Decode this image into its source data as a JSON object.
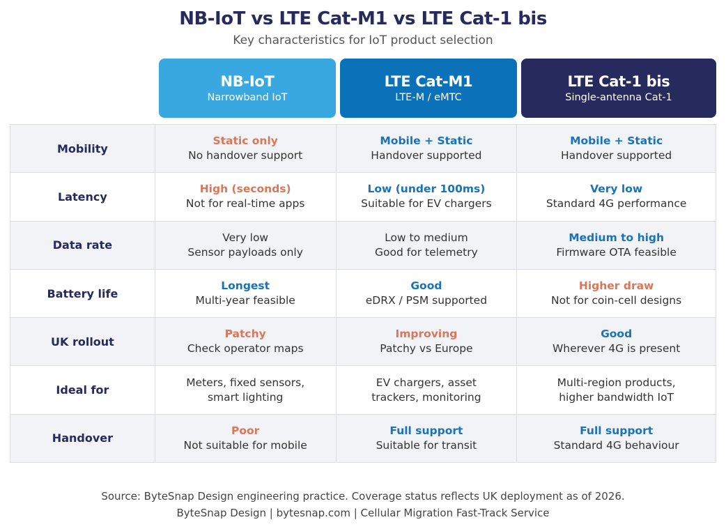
{
  "title": "NB-IoT vs LTE Cat-M1 vs LTE Cat-1 bis",
  "subtitle": "Key characteristics for IoT product selection",
  "columns": [
    {
      "name": "NB-IoT",
      "sub": "Narrowband IoT",
      "color": "#3aa8e0"
    },
    {
      "name": "LTE Cat-M1",
      "sub": "LTE-M / eMTC",
      "color": "#0b72b9"
    },
    {
      "name": "LTE Cat-1 bis",
      "sub": "Single-antenna Cat-1",
      "color": "#262a5c"
    }
  ],
  "rows": [
    {
      "label": "Mobility",
      "cells": [
        {
          "h": "Static only",
          "t": "No handover support",
          "tone": "orange"
        },
        {
          "h": "Mobile + Static",
          "t": "Handover supported",
          "tone": "blue"
        },
        {
          "h": "Mobile + Static",
          "t": "Handover supported",
          "tone": "blue"
        }
      ]
    },
    {
      "label": "Latency",
      "cells": [
        {
          "h": "High (seconds)",
          "t": "Not for real-time apps",
          "tone": "orange"
        },
        {
          "h": "Low (under 100ms)",
          "t": "Suitable for EV chargers",
          "tone": "blue"
        },
        {
          "h": "Very low",
          "t": "Standard 4G performance",
          "tone": "blue"
        }
      ]
    },
    {
      "label": "Data rate",
      "cells": [
        {
          "h": "",
          "t": "Very low",
          "t2": "Sensor payloads only"
        },
        {
          "h": "",
          "t": "Low to medium",
          "t2": "Good for telemetry"
        },
        {
          "h": "Medium to high",
          "t": "Firmware OTA feasible",
          "tone": "blue"
        }
      ]
    },
    {
      "label": "Battery life",
      "cells": [
        {
          "h": "Longest",
          "t": "Multi-year feasible",
          "tone": "blue"
        },
        {
          "h": "Good",
          "t": "eDRX / PSM supported",
          "tone": "blue"
        },
        {
          "h": "Higher draw",
          "t": "Not for coin-cell designs",
          "tone": "orange"
        }
      ]
    },
    {
      "label": "UK rollout",
      "cells": [
        {
          "h": "Patchy",
          "t": "Check operator maps",
          "tone": "orange"
        },
        {
          "h": "Improving",
          "t": "Patchy vs Europe",
          "tone": "orange"
        },
        {
          "h": "Good",
          "t": "Wherever 4G is present",
          "tone": "blue"
        }
      ]
    },
    {
      "label": "Ideal for",
      "cells": [
        {
          "h": "",
          "t": "Meters, fixed sensors,",
          "t2": "smart lighting"
        },
        {
          "h": "",
          "t": "EV chargers, asset",
          "t2": "trackers, monitoring"
        },
        {
          "h": "",
          "t": "Multi-region products,",
          "t2": "higher bandwidth IoT"
        }
      ]
    },
    {
      "label": "Handover",
      "cells": [
        {
          "h": "Poor",
          "t": "Not suitable for mobile",
          "tone": "orange"
        },
        {
          "h": "Full support",
          "t": "Suitable for transit",
          "tone": "blue"
        },
        {
          "h": "Full support",
          "t": "Standard 4G behaviour",
          "tone": "blue"
        }
      ]
    }
  ],
  "footer": {
    "source": "Source: ByteSnap Design engineering practice. Coverage status reflects UK deployment as of 2026.",
    "credit": "ByteSnap Design | bytesnap.com | Cellular Migration Fast-Track Service"
  }
}
